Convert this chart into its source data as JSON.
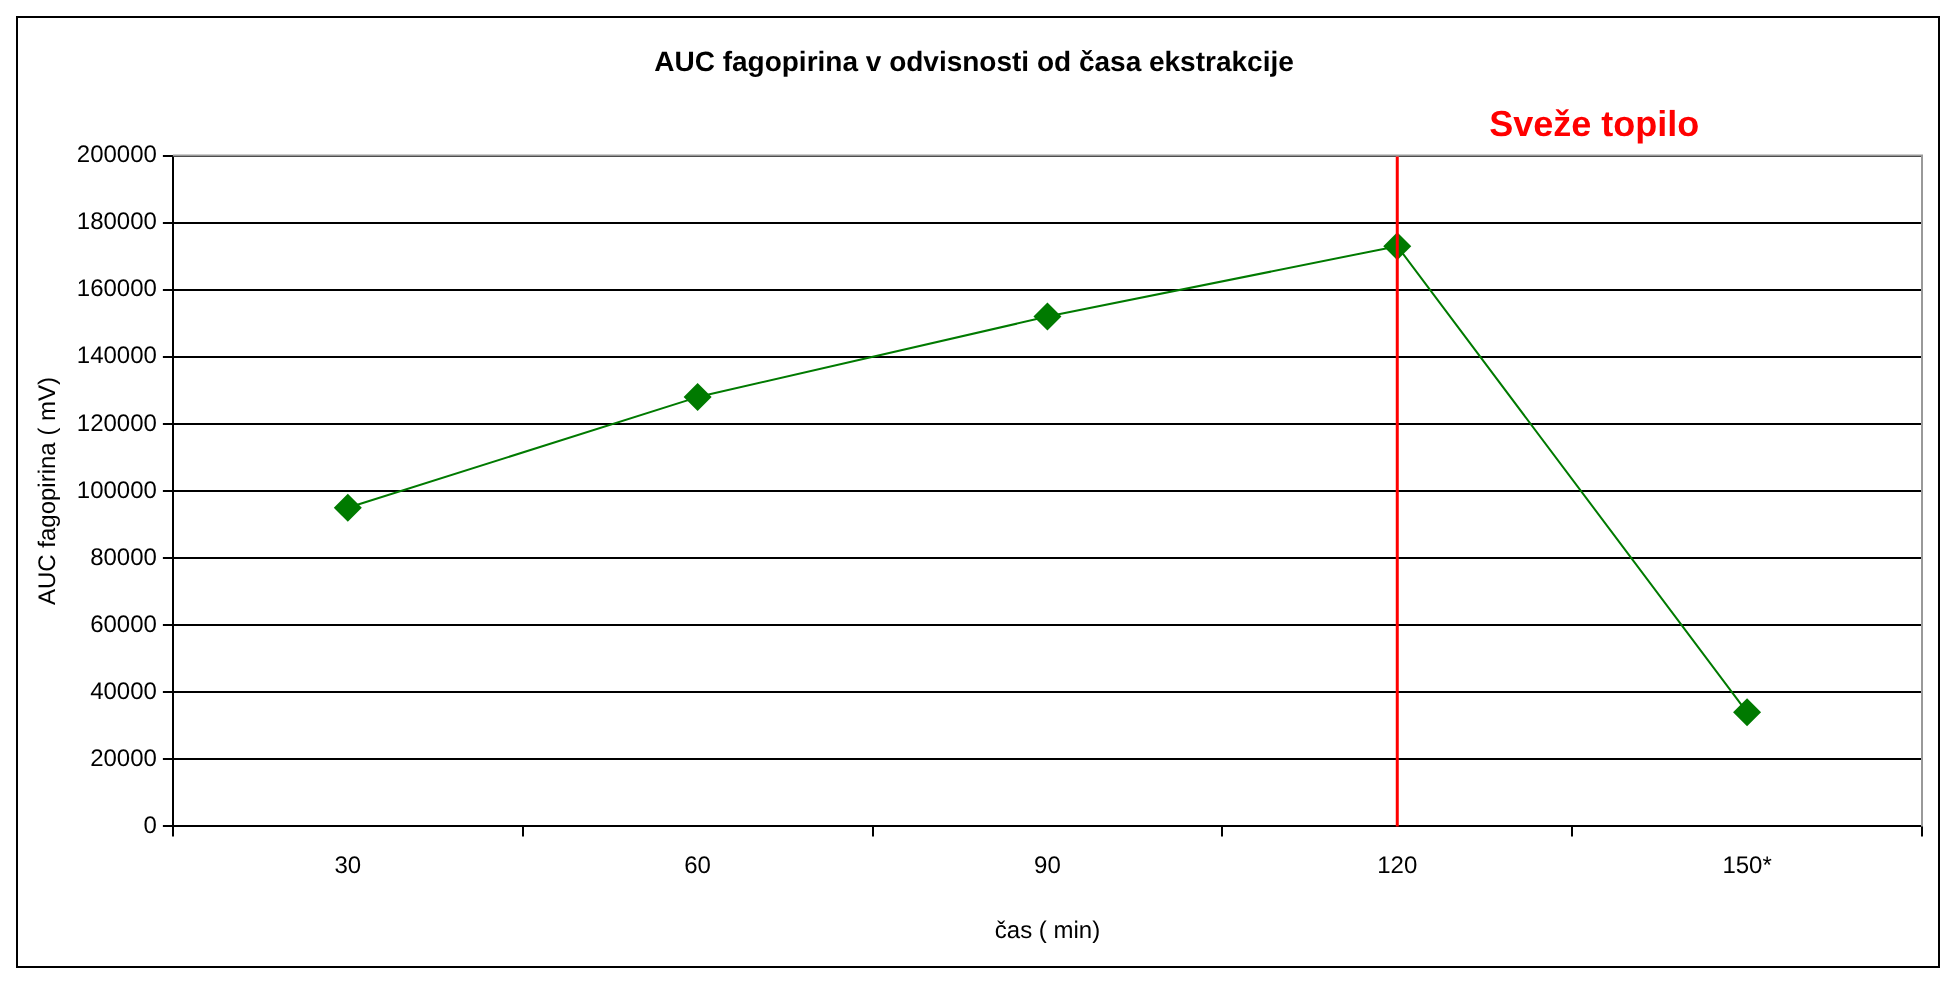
{
  "chart_data": {
    "type": "line",
    "title": "AUC fagopirina v odvisnosti od časa ekstrakcije",
    "xlabel": "čas ( min)",
    "ylabel": "AUC fagopirina ( mV)",
    "categories": [
      "30",
      "60",
      "90",
      "120",
      "150*"
    ],
    "series": [
      {
        "color": "#007a00",
        "values": [
          95000,
          128000,
          152000,
          173000,
          34000
        ]
      }
    ],
    "ylim": [
      0,
      200000
    ],
    "yticks": [
      0,
      20000,
      40000,
      60000,
      80000,
      100000,
      120000,
      140000,
      160000,
      180000,
      200000
    ],
    "ref_lines": [
      {
        "axis": "x",
        "value": "120",
        "label": "Sveže topilo",
        "color": "#ff0000"
      }
    ],
    "grid": "y",
    "legend": false,
    "marker": "diamond",
    "line_style": "solid"
  }
}
